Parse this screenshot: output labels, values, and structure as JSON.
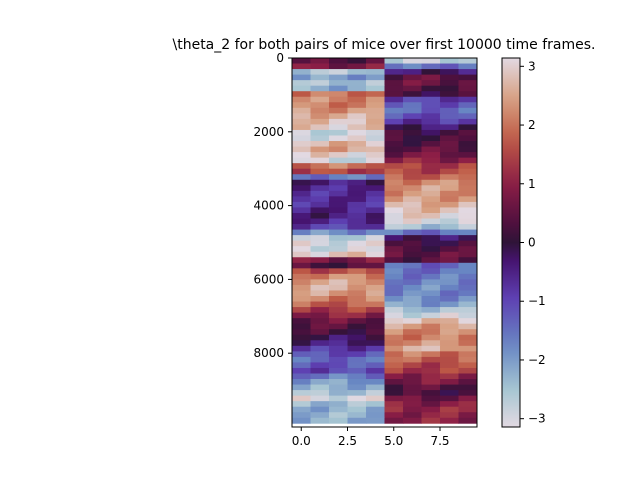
{
  "chart_data": {
    "type": "heatmap",
    "title": "\\theta_2 for both pairs of mice over first 10000 time frames.",
    "xlabel": "",
    "ylabel": "",
    "colormap": "twilight_shifted",
    "x_range": [
      -0.5,
      9.5
    ],
    "y_range": [
      10000,
      0
    ],
    "x_ticks": [
      0.0,
      2.5,
      5.0,
      7.5
    ],
    "x_tick_labels": [
      "0.0",
      "2.5",
      "5.0",
      "7.5"
    ],
    "y_ticks": [
      0,
      2000,
      4000,
      6000,
      8000
    ],
    "y_tick_labels": [
      "0",
      "2000",
      "4000",
      "6000",
      "8000"
    ],
    "columns": [
      0,
      1,
      2,
      3,
      4,
      5,
      6,
      7,
      8,
      9
    ],
    "value_range": [
      -3.14159,
      3.14159
    ],
    "colorbar": {
      "ticks": [
        3,
        2,
        1,
        0,
        -1,
        -2,
        -3
      ],
      "tick_labels": [
        "3",
        "2",
        "1",
        "0",
        "−1",
        "−2",
        "−3"
      ]
    },
    "row_frames": [
      0,
      150,
      300,
      450,
      600,
      750,
      900,
      1050,
      1200,
      1350,
      1500,
      1650,
      1800,
      1950,
      2100,
      2250,
      2400,
      2550,
      2700,
      2850,
      3000,
      3150,
      3300,
      3450,
      3600,
      3750,
      3900,
      4050,
      4200,
      4350,
      4500,
      4650,
      4800,
      4950,
      5100,
      5250,
      5400,
      5550,
      5700,
      5850,
      6000,
      6150,
      6300,
      6450,
      6600,
      6750,
      6900,
      7050,
      7200,
      7350,
      7500,
      7650,
      7800,
      7950,
      8100,
      8250,
      8400,
      8550,
      8700,
      8850,
      9000,
      9150,
      9300,
      9450,
      9600,
      9750
    ],
    "row_values_pair1": [
      0.4,
      0.8,
      -2.6,
      -2.0,
      -2.5,
      -2.2,
      2.0,
      2.2,
      2.1,
      2.3,
      2.6,
      2.8,
      2.9,
      -2.8,
      -3.0,
      2.7,
      2.5,
      3.0,
      -2.9,
      2.0,
      1.5,
      -1.6,
      -0.4,
      -0.6,
      -0.7,
      -0.6,
      -0.7,
      -0.5,
      -0.4,
      -0.6,
      -0.9,
      -1.8,
      -2.7,
      -3.0,
      -2.9,
      2.9,
      0.8,
      0.3,
      1.6,
      2.2,
      2.5,
      2.6,
      2.4,
      2.1,
      1.8,
      1.4,
      1.0,
      0.6,
      0.4,
      0.2,
      -0.2,
      -0.4,
      -0.8,
      -1.1,
      -1.4,
      -1.2,
      -1.0,
      -1.6,
      -2.0,
      -2.2,
      -2.5,
      -3.0,
      -2.4,
      -2.2,
      -2.3,
      -2.2
    ],
    "row_values_pair2": [
      -2.8,
      -1.5,
      -0.3,
      0.5,
      0.6,
      0.3,
      0.1,
      -0.9,
      -1.2,
      -1.4,
      -1.1,
      -0.8,
      -0.3,
      0.1,
      0.2,
      0.3,
      0.5,
      0.7,
      1.0,
      1.4,
      1.5,
      1.8,
      2.2,
      2.4,
      2.3,
      2.4,
      2.6,
      2.8,
      3.0,
      -3.0,
      -2.5,
      -1.5,
      -0.2,
      0.1,
      0.3,
      0.5,
      0.4,
      -1.4,
      -1.5,
      -1.6,
      -1.7,
      -1.8,
      -1.7,
      -1.8,
      -2.0,
      -2.5,
      -2.9,
      2.8,
      2.4,
      2.2,
      2.1,
      2.3,
      2.6,
      2.0,
      1.8,
      1.5,
      1.4,
      1.0,
      0.8,
      0.4,
      0.2,
      0.6,
      0.9,
      1.1,
      1.0,
      1.0
    ]
  }
}
